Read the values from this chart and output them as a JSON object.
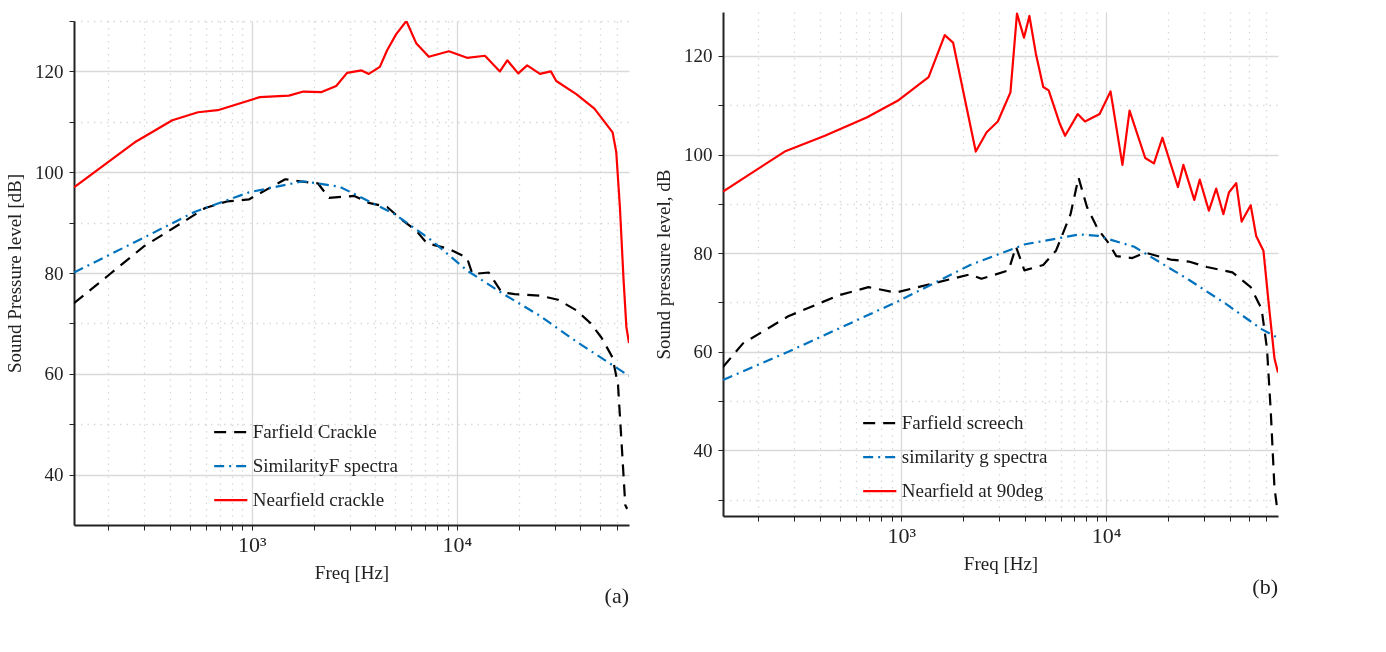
{
  "chart_data": [
    {
      "type": "line",
      "xlabel": "Freq [Hz]",
      "ylabel": "Sound Pressure level [dB]",
      "log": "x",
      "grid": true,
      "legend": "bottom",
      "annotations": [
        "(a)"
      ],
      "xlim": [
        136,
        69000
      ],
      "ylim": [
        30,
        130
      ],
      "xticks": [
        {
          "value": 200,
          "label": null
        },
        {
          "value": 300,
          "label": null
        },
        {
          "value": 400,
          "label": null
        },
        {
          "value": 500,
          "label": null
        },
        {
          "value": 600,
          "label": null
        },
        {
          "value": 700,
          "label": null
        },
        {
          "value": 800,
          "label": null
        },
        {
          "value": 900,
          "label": null
        },
        {
          "value": 1000,
          "label": "10³"
        },
        {
          "value": 2000,
          "label": null
        },
        {
          "value": 3000,
          "label": null
        },
        {
          "value": 4000,
          "label": null
        },
        {
          "value": 5000,
          "label": null
        },
        {
          "value": 6000,
          "label": null
        },
        {
          "value": 7000,
          "label": null
        },
        {
          "value": 8000,
          "label": null
        },
        {
          "value": 9000,
          "label": null
        },
        {
          "value": 10000,
          "label": "10⁴"
        },
        {
          "value": 20000,
          "label": null
        },
        {
          "value": 30000,
          "label": null
        },
        {
          "value": 40000,
          "label": null
        },
        {
          "value": 50000,
          "label": null
        },
        {
          "value": 60000,
          "label": null
        }
      ],
      "yticks": [
        40,
        {
          "value": 50,
          "label": null
        },
        60,
        {
          "value": 70,
          "label": null
        },
        80,
        {
          "value": 90,
          "label": null
        },
        100,
        {
          "value": 110,
          "label": null
        },
        120,
        {
          "value": 130,
          "label": null
        }
      ],
      "series": [
        {
          "name": "Farfield Crackle",
          "color": "#000000",
          "line_style": "dashed",
          "x": [
            136,
            201,
            296,
            483,
            593,
            757,
            968,
            1456,
            1786,
            2100,
            2380,
            3160,
            3720,
            4570,
            5370,
            6330,
            7150,
            9140,
            11200,
            11900,
            14300,
            16500,
            19100,
            25400,
            31100,
            38200,
            44900,
            50800,
            57400,
            61000,
            63500,
            66200,
            67600
          ],
          "values": [
            74.0,
            79.6,
            85.2,
            90.6,
            92.9,
            94.2,
            94.6,
            98.6,
            98.1,
            97.8,
            94.9,
            95.3,
            93.9,
            93.1,
            90.6,
            88.4,
            85.9,
            84.8,
            83.0,
            79.8,
            80.1,
            76.2,
            75.8,
            75.5,
            74.7,
            72.6,
            70.0,
            67.1,
            63.2,
            57.8,
            46.2,
            33.9,
            33.2
          ]
        },
        {
          "name": "SimilarityF  spectra",
          "color": "#0072bd",
          "line_style": "dashdot",
          "x": [
            136,
            284,
            525,
            968,
            1786,
            2690,
            4960,
            7450,
            11200,
            16900,
            25400,
            38200,
            57400,
            69000
          ],
          "values": [
            80.1,
            86.6,
            92.1,
            96.0,
            98.2,
            97.1,
            91.7,
            86.6,
            80.5,
            75.8,
            71.5,
            66.4,
            61.7,
            59.6
          ]
        },
        {
          "name": "Nearfield crackle",
          "color": "#ff0000",
          "line_style": "solid",
          "x": [
            136,
            273,
            410,
            547,
            683,
            1094,
            1517,
            1786,
            2190,
            2580,
            2915,
            3430,
            3720,
            4210,
            4570,
            5060,
            5670,
            6330,
            7300,
            9140,
            11200,
            13700,
            16200,
            17600,
            19900,
            22000,
            25400,
            28700,
            30500,
            38200,
            46800,
            57400,
            59800,
            62300,
            64900,
            67000,
            69000
          ],
          "values": [
            97.0,
            106.1,
            110.3,
            111.9,
            112.3,
            114.9,
            115.2,
            116.0,
            115.9,
            117.1,
            119.7,
            120.2,
            119.5,
            120.9,
            124.2,
            127.4,
            130,
            125.6,
            122.9,
            124.0,
            122.7,
            123.1,
            120,
            122.2,
            119.6,
            121.2,
            119.5,
            120,
            118.1,
            115.5,
            112.6,
            107.9,
            104,
            93.1,
            78.7,
            69.3,
            66.1
          ]
        }
      ]
    },
    {
      "type": "line",
      "xlabel": "Freq [Hz]",
      "ylabel": "Sound pressure level, dB",
      "log": "x",
      "grid": true,
      "legend": "bottom",
      "annotations": [
        "(b)"
      ],
      "xlim": [
        135,
        68900
      ],
      "ylim": [
        26.7,
        128.9
      ],
      "xticks": [
        {
          "value": 200,
          "label": null
        },
        {
          "value": 300,
          "label": null
        },
        {
          "value": 400,
          "label": null
        },
        {
          "value": 500,
          "label": null
        },
        {
          "value": 600,
          "label": null
        },
        {
          "value": 700,
          "label": null
        },
        {
          "value": 800,
          "label": null
        },
        {
          "value": 900,
          "label": null
        },
        {
          "value": 1000,
          "label": "10³"
        },
        {
          "value": 2000,
          "label": null
        },
        {
          "value": 3000,
          "label": null
        },
        {
          "value": 4000,
          "label": null
        },
        {
          "value": 5000,
          "label": null
        },
        {
          "value": 6000,
          "label": null
        },
        {
          "value": 7000,
          "label": null
        },
        {
          "value": 8000,
          "label": null
        },
        {
          "value": 9000,
          "label": null
        },
        {
          "value": 10000,
          "label": "10⁴"
        },
        {
          "value": 20000,
          "label": null
        },
        {
          "value": 30000,
          "label": null
        },
        {
          "value": 40000,
          "label": null
        },
        {
          "value": 50000,
          "label": null
        },
        {
          "value": 60000,
          "label": null
        }
      ],
      "yticks": [
        {
          "value": 30,
          "label": null
        },
        40,
        {
          "value": 50,
          "label": null
        },
        60,
        {
          "value": 70,
          "label": null
        },
        80,
        {
          "value": 90,
          "label": null
        },
        100,
        {
          "value": 110,
          "label": null
        },
        120
      ],
      "series": [
        {
          "name": "Farfield screech",
          "color": "#000000",
          "line_style": "dashed",
          "x": [
            135,
            169,
            281,
            499,
            692,
            940,
            1445,
            2170,
            2460,
            3340,
            3630,
            3990,
            4930,
            5690,
            6700,
            7330,
            8050,
            9100,
            10300,
            11200,
            13400,
            15500,
            20600,
            25300,
            31000,
            41300,
            50700,
            57300,
            60900,
            63500,
            66200,
            68100
          ],
          "values": [
            56.9,
            61.7,
            67.2,
            71.5,
            73.1,
            72.0,
            73.9,
            75.7,
            74.8,
            76.5,
            81.3,
            76.5,
            77.6,
            80.5,
            87.9,
            95.3,
            89.4,
            84.9,
            82.0,
            79.4,
            79.0,
            80.1,
            78.7,
            78.3,
            77.2,
            76.1,
            73.1,
            68.7,
            60.6,
            48.0,
            32.5,
            28.5
          ]
        },
        {
          "name": "similarity g spectra",
          "color": "#0072bd",
          "line_style": "dashdot",
          "x": [
            135,
            281,
            960,
            2170,
            4020,
            7410,
            9100,
            13700,
            25300,
            38100,
            57300,
            68900
          ],
          "values": [
            54.3,
            60.0,
            70.2,
            77.6,
            81.8,
            83.8,
            83.5,
            81.3,
            74.6,
            69.8,
            64.6,
            62.8
          ]
        },
        {
          "name": "Nearfield at 90deg",
          "color": "#ff0000",
          "line_style": "solid",
          "x": [
            135,
            270,
            424,
            678,
            960,
            1360,
            1630,
            1790,
            2310,
            2610,
            2960,
            3410,
            3670,
            3970,
            4220,
            4540,
            4930,
            5240,
            5930,
            6300,
            7260,
            7880,
            9290,
            10500,
            12000,
            13000,
            15500,
            17100,
            18800,
            22400,
            23800,
            26900,
            28600,
            31700,
            34400,
            37300,
            39700,
            43100,
            45800,
            50700,
            53900,
            58500,
            62200,
            66200,
            68900
          ],
          "values": [
            92.5,
            100.6,
            103.8,
            107.5,
            110.9,
            115.7,
            124.2,
            122.7,
            100.6,
            104.5,
            106.7,
            112.6,
            128.6,
            123.7,
            128.1,
            120.4,
            113.7,
            113,
            106.3,
            103.8,
            108.2,
            106.7,
            108.2,
            112.8,
            97.9,
            108.9,
            99.3,
            98.2,
            103.4,
            93.4,
            97.9,
            90.8,
            94.9,
            88.6,
            93.1,
            87.9,
            92.3,
            94.2,
            86.4,
            89.7,
            83.5,
            80.5,
            69.4,
            58.7,
            55.8
          ]
        }
      ]
    }
  ]
}
